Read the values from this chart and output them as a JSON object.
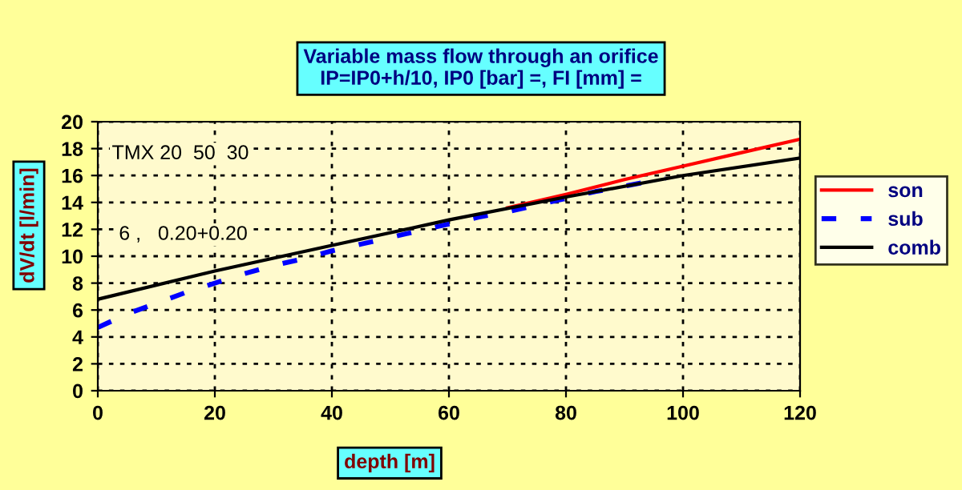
{
  "chart_data": {
    "type": "line",
    "title": "Variable mass flow through an orifice",
    "subtitle": "IP=IP0+h/10, IP0 [bar] =, FI [mm] =",
    "xlabel": "depth [m]",
    "ylabel": "dV/dt [l/min]",
    "annotations": [
      "TMX 20  50  30",
      "6 ,   0.20+0.20"
    ],
    "series": [
      {
        "name": "son",
        "color": "#ff0000",
        "line_style": "solid",
        "x": [
          70,
          80,
          90,
          100,
          110,
          120
        ],
        "values": [
          13.6,
          14.6,
          15.7,
          16.7,
          17.7,
          18.7
        ]
      },
      {
        "name": "sub",
        "color": "#0000ff",
        "line_style": "dashed",
        "x": [
          0,
          5,
          10,
          15,
          20,
          25,
          30,
          35,
          40,
          45,
          50,
          55,
          60,
          65,
          70,
          75,
          80,
          85,
          90,
          97
        ],
        "values": [
          4.7,
          5.7,
          6.5,
          7.3,
          8.0,
          8.7,
          9.3,
          9.8,
          10.4,
          10.9,
          11.4,
          11.9,
          12.4,
          12.9,
          13.3,
          13.8,
          14.3,
          14.8,
          15.2,
          15.8
        ]
      },
      {
        "name": "comb",
        "color": "#000000",
        "line_style": "solid",
        "x": [
          0,
          20,
          40,
          60,
          80,
          100,
          120
        ],
        "values": [
          6.8,
          8.9,
          10.8,
          12.7,
          14.4,
          16.0,
          17.3
        ]
      }
    ],
    "xlim": [
      0,
      120
    ],
    "xticks": [
      0,
      20,
      40,
      60,
      80,
      100,
      120
    ],
    "ylim": [
      0,
      20
    ],
    "yticks": [
      0,
      2,
      4,
      6,
      8,
      10,
      12,
      14,
      16,
      18,
      20
    ],
    "grid": true,
    "legend": "right"
  }
}
